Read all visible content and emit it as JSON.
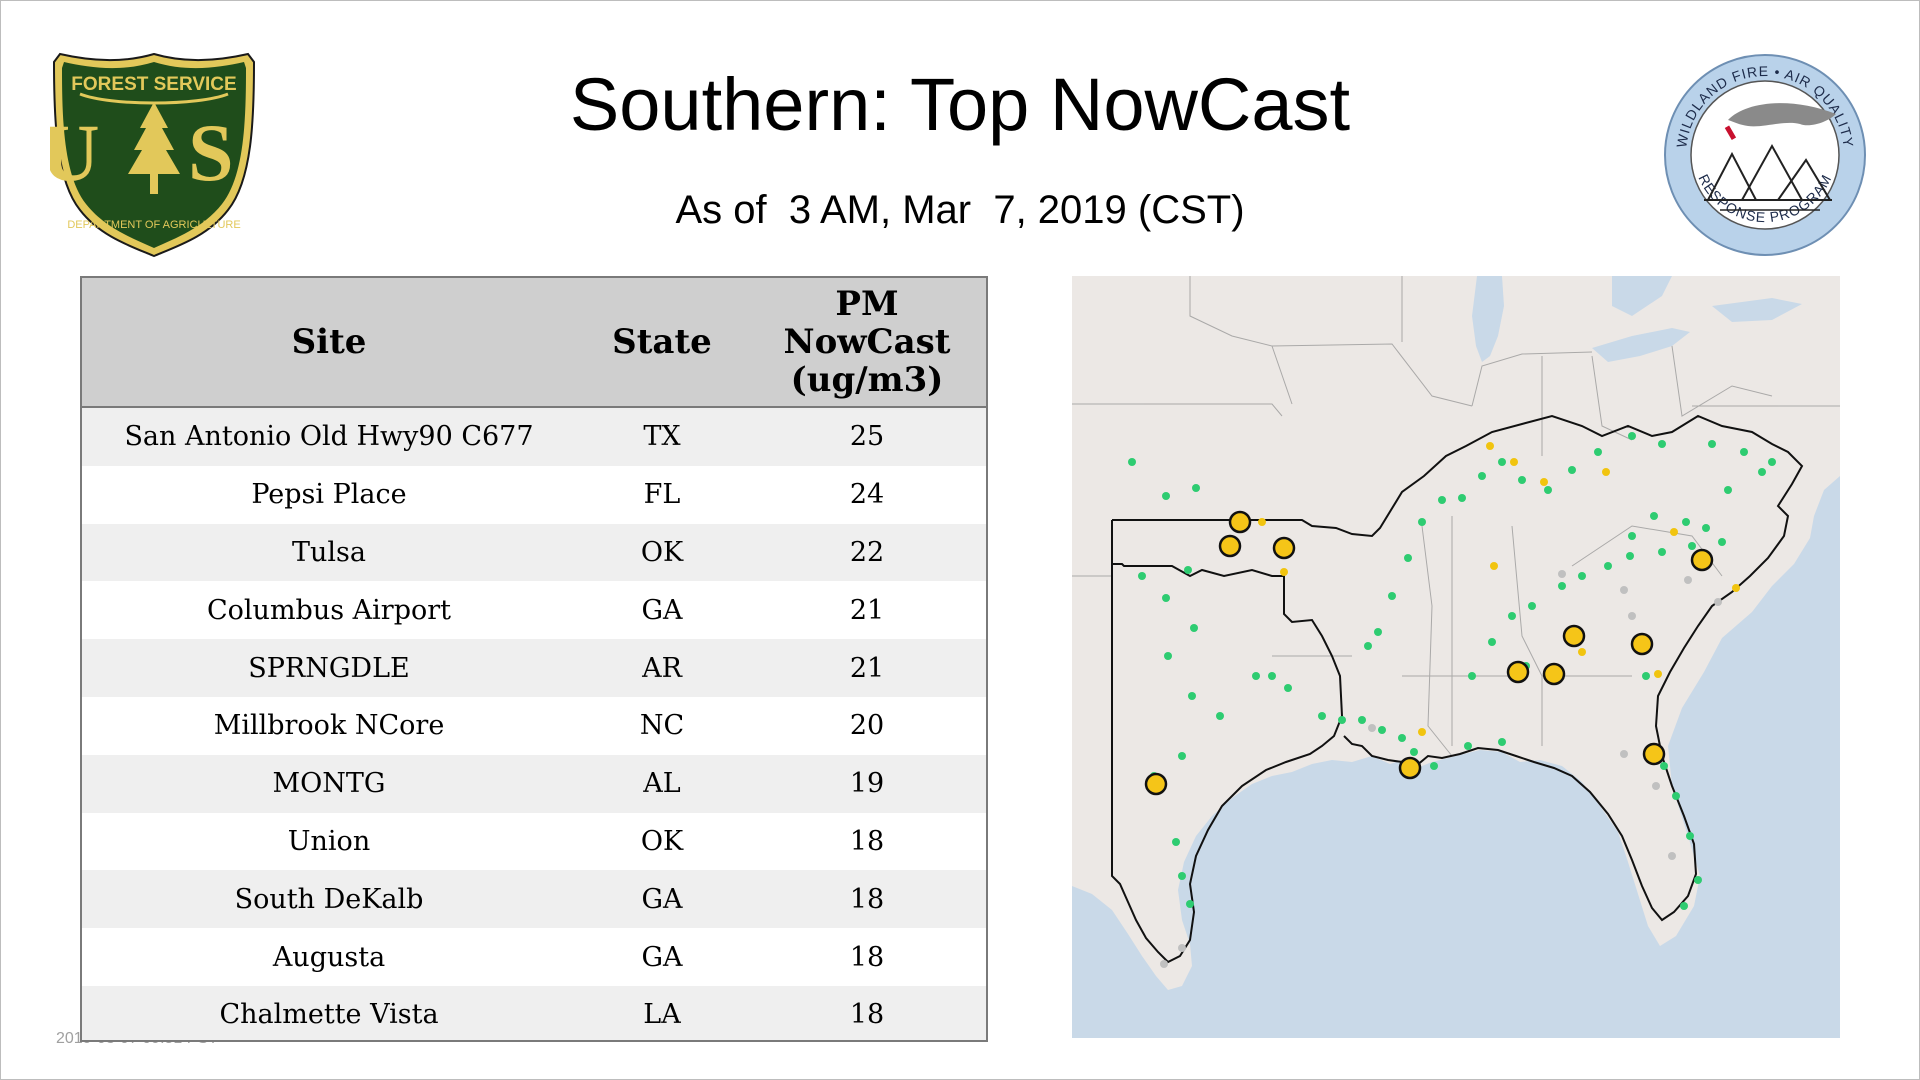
{
  "header": {
    "title": "Southern: Top NowCast",
    "subtitle": "As of  3 AM, Mar  7, 2019 (CST)"
  },
  "logos": {
    "forest_service": {
      "top_text": "FOREST SERVICE",
      "letters": "U S",
      "bottom_text": "DEPARTMENT OF AGRICULTURE",
      "icon": "pine-tree-icon",
      "colors": {
        "shield": "#1f4d1b",
        "gold": "#e2c85a"
      }
    },
    "wildland_fire": {
      "top_text": "WILDLAND FIRE • AIR QUALITY",
      "bottom_text": "RESPONSE PROGRAM",
      "icon": "mountains-smoke-icon",
      "colors": {
        "ring": "#b9d2ea",
        "smoke": "#8a8a8a",
        "flame": "#c8102e"
      }
    }
  },
  "table": {
    "headers": {
      "site": "Site",
      "state": "State",
      "pm_line1": "PM",
      "pm_line2": "NowCast",
      "pm_line3": "(ug/m3)"
    },
    "rows": [
      {
        "site": "San Antonio Old Hwy90 C677",
        "state": "TX",
        "value": "25"
      },
      {
        "site": "Pepsi Place",
        "state": "FL",
        "value": "24"
      },
      {
        "site": "Tulsa",
        "state": "OK",
        "value": "22"
      },
      {
        "site": "Columbus Airport",
        "state": "GA",
        "value": "21"
      },
      {
        "site": "SPRNGDLE",
        "state": "AR",
        "value": "21"
      },
      {
        "site": "Millbrook NCore",
        "state": "NC",
        "value": "20"
      },
      {
        "site": "MONTG",
        "state": "AL",
        "value": "19"
      },
      {
        "site": "Union",
        "state": "OK",
        "value": "18"
      },
      {
        "site": "South DeKalb",
        "state": "GA",
        "value": "18"
      },
      {
        "site": "Augusta",
        "state": "GA",
        "value": "18"
      },
      {
        "site": "Chalmette Vista",
        "state": "LA",
        "value": "18"
      }
    ]
  },
  "footer": {
    "stamp": "2019-03-07 09:51 PST"
  },
  "map": {
    "icon": "southern-us-map",
    "colors": {
      "water": "#c9d9e8",
      "land": "#ece8e5",
      "good": "#2ecc71",
      "moderate": "#f1c40f",
      "no_data": "#c0c0c0",
      "top_site": "#f5c518"
    }
  }
}
